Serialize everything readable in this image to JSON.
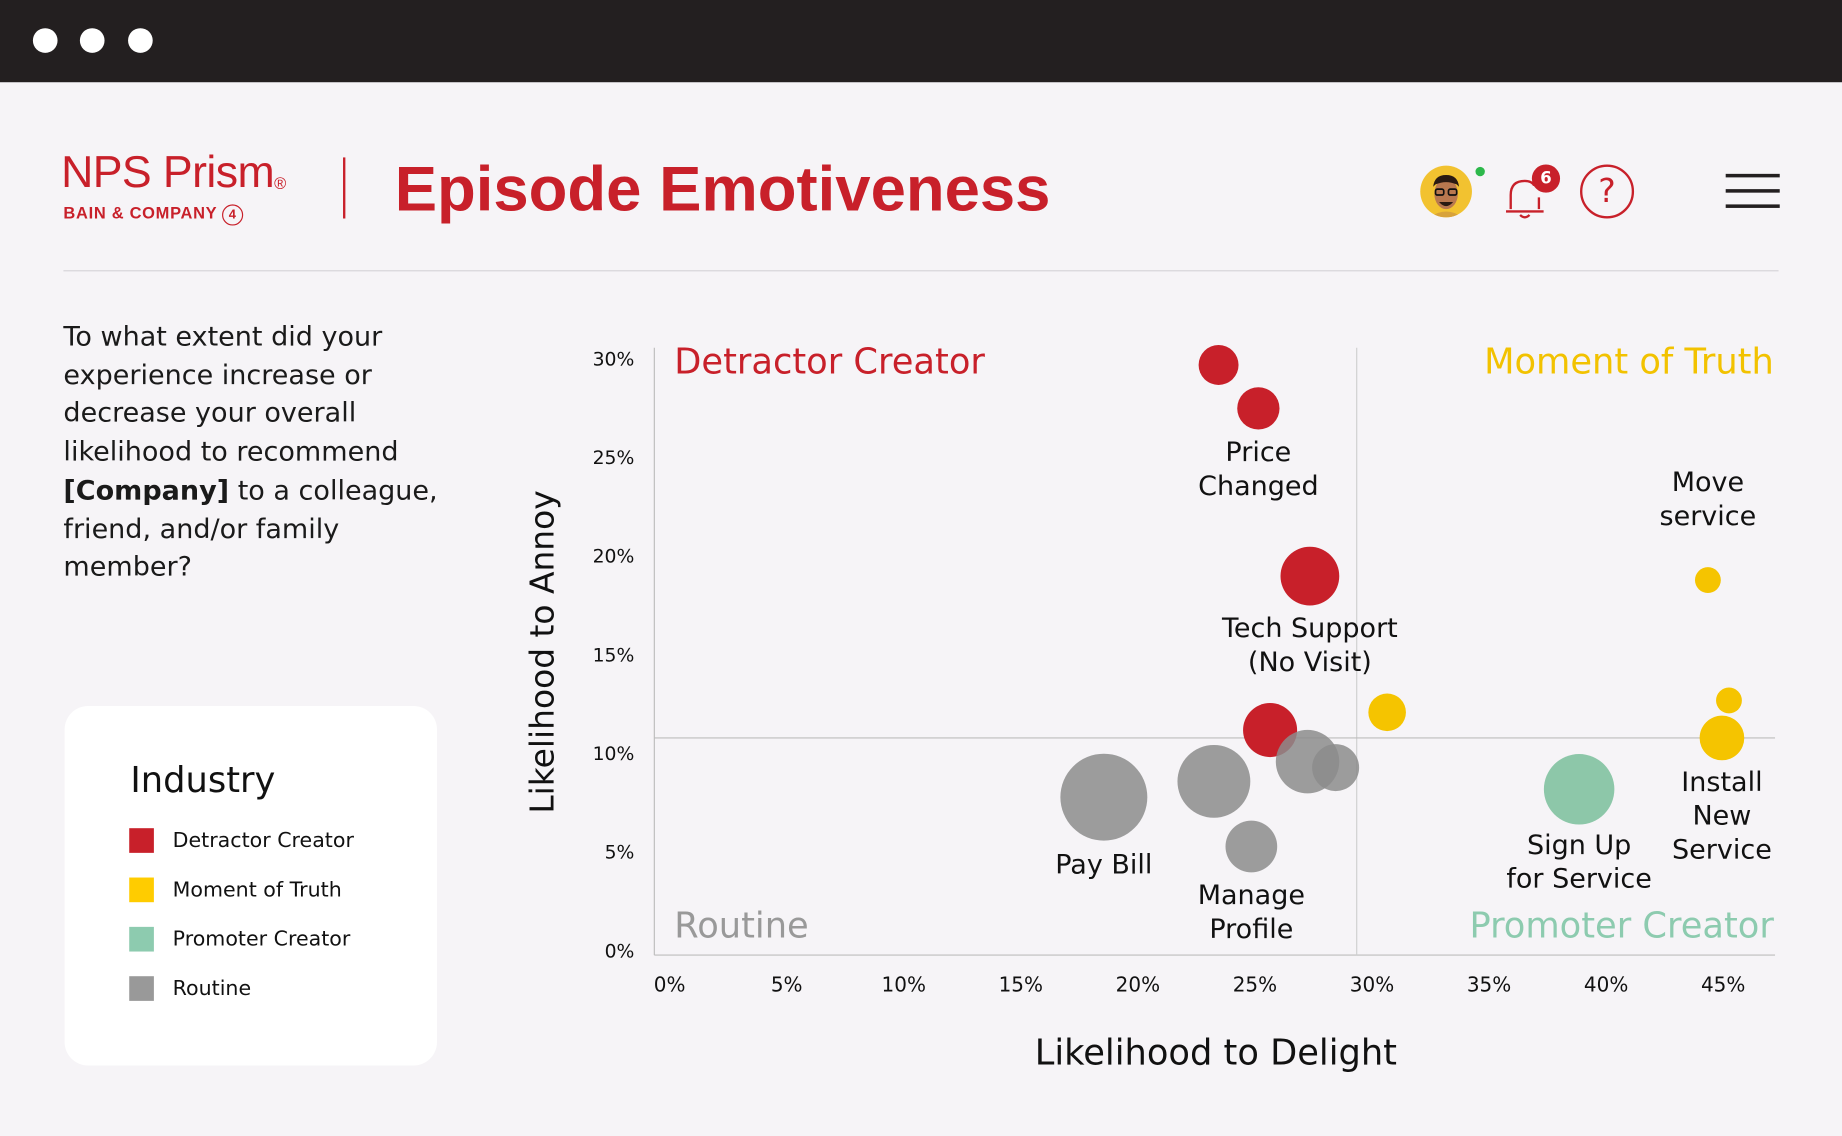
{
  "window": {
    "controls": [
      "close",
      "minimize",
      "maximize"
    ]
  },
  "header": {
    "logo_main": "NPS Prism",
    "logo_reg": "®",
    "logo_sub": "BAIN & COMPANY",
    "logo_sub_mark": "4",
    "title": "Episode Emotiveness",
    "notification_count": "6",
    "help_label": "?"
  },
  "question": {
    "before": "To what extent did your experience increase or decrease your overall likelihood to recommend ",
    "bold": "[Company]",
    "after": " to a colleague, friend, and/or family member?"
  },
  "legend": {
    "title": "Industry",
    "items": [
      {
        "label": "Detractor Creator",
        "color": "#C8202A"
      },
      {
        "label": "Moment of Truth",
        "color": "#FFCC00"
      },
      {
        "label": "Promoter Creator",
        "color": "#8DCBAF"
      },
      {
        "label": "Routine",
        "color": "#999999"
      }
    ]
  },
  "chart_data": {
    "type": "scatter",
    "subtype": "bubble",
    "xlabel": "Likelihood to Delight",
    "ylabel": "Likelihood to Annoy",
    "xlim": [
      0,
      47
    ],
    "ylim": [
      0,
      30
    ],
    "x_ticks": [
      "0%",
      "5%",
      "10%",
      "15%",
      "20%",
      "25%",
      "30%",
      "35%",
      "40%",
      "45%"
    ],
    "y_ticks": [
      "0%",
      "5%",
      "10%",
      "15%",
      "20%",
      "25%",
      "30%"
    ],
    "quadrant_dividers": {
      "x": 30,
      "y": 11
    },
    "quadrants": {
      "top_left": {
        "label": "Detractor Creator",
        "color": "#C8202A"
      },
      "top_right": {
        "label": "Moment of Truth",
        "color": "#F2C200"
      },
      "bottom_left": {
        "label": "Routine",
        "color": "#999999"
      },
      "bottom_right": {
        "label": "Promoter Creator",
        "color": "#8DCBAF"
      }
    },
    "grid": false,
    "points": [
      {
        "x": 24.1,
        "y": 29.9,
        "size": 17,
        "category": "Detractor Creator",
        "label": []
      },
      {
        "x": 25.8,
        "y": 27.7,
        "size": 18,
        "category": "Detractor Creator",
        "label": [
          "Price",
          "Changed"
        ]
      },
      {
        "x": 28.0,
        "y": 19.2,
        "size": 25,
        "category": "Detractor Creator",
        "label": [
          "Tech Support",
          "(No Visit)"
        ]
      },
      {
        "x": 26.3,
        "y": 11.4,
        "size": 23,
        "category": "Detractor Creator",
        "label": []
      },
      {
        "x": 31.3,
        "y": 12.3,
        "size": 16,
        "category": "Moment of Truth",
        "label": []
      },
      {
        "x": 45.0,
        "y": 19.0,
        "size": 11,
        "category": "Moment of Truth",
        "label": [
          "Move",
          "service"
        ]
      },
      {
        "x": 45.9,
        "y": 12.9,
        "size": 11,
        "category": "Moment of Truth",
        "label": []
      },
      {
        "x": 45.6,
        "y": 11.0,
        "size": 19,
        "category": "Moment of Truth",
        "label": [
          "Install",
          "New",
          "Service"
        ]
      },
      {
        "x": 39.5,
        "y": 8.4,
        "size": 30,
        "category": "Promoter Creator",
        "label": [
          "Sign Up",
          "for Service"
        ]
      },
      {
        "x": 19.2,
        "y": 8.0,
        "size": 37,
        "category": "Routine",
        "label": [
          "Pay Bill"
        ]
      },
      {
        "x": 23.9,
        "y": 8.8,
        "size": 31,
        "category": "Routine",
        "label": []
      },
      {
        "x": 27.9,
        "y": 9.8,
        "size": 27,
        "category": "Routine",
        "label": []
      },
      {
        "x": 29.1,
        "y": 9.5,
        "size": 20,
        "category": "Routine",
        "label": []
      },
      {
        "x": 25.5,
        "y": 5.5,
        "size": 22,
        "category": "Routine",
        "label": [
          "Manage",
          "Profile"
        ]
      }
    ],
    "colors": {
      "Detractor Creator": "#C8202A",
      "Moment of Truth": "#F5C400",
      "Promoter Creator": "#8DC7A9",
      "Routine": "#8C8C8C"
    }
  }
}
